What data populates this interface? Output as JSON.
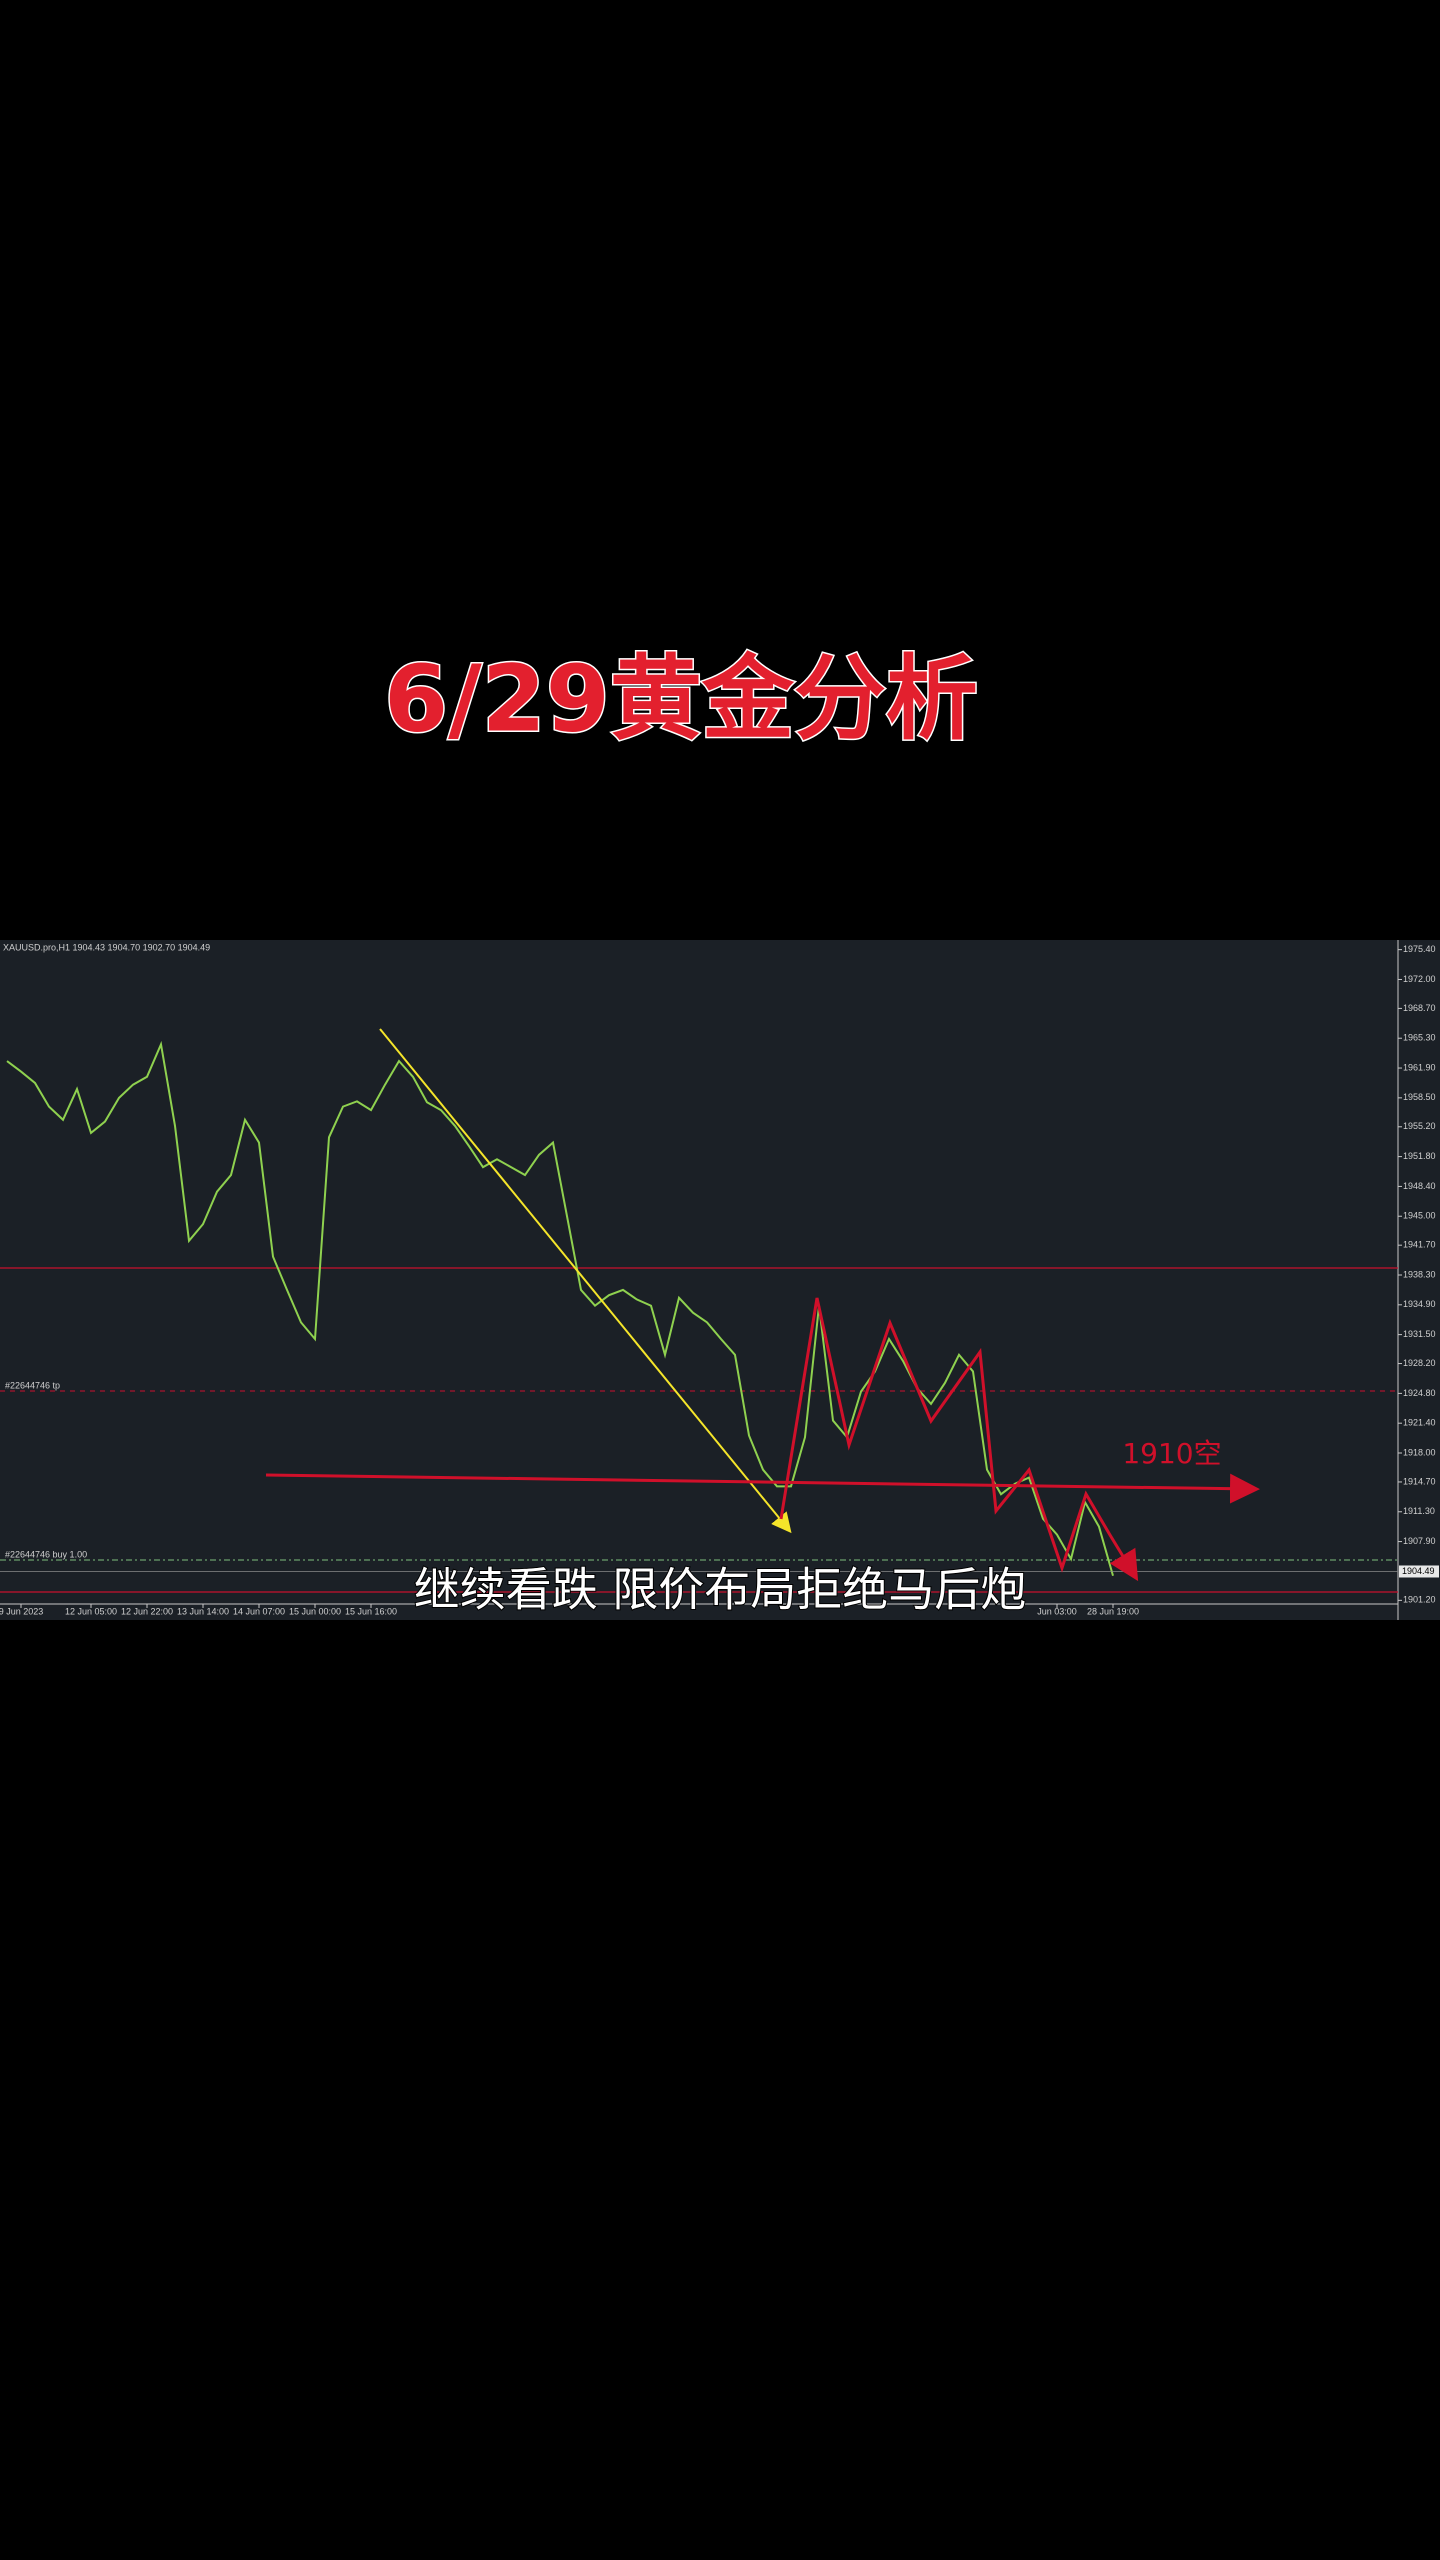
{
  "video_title": "6/29黄金分析",
  "subtitle": "继续看跌 限价布局拒绝马后炮",
  "chart_data": {
    "type": "line",
    "header": "XAUUSD.pro,H1  1904.43 1904.70 1902.70 1904.49",
    "color": "#8fd14f",
    "categories": [
      null,
      "9 Jun 2023",
      null,
      null,
      null,
      null,
      "12 Jun 05:00",
      null,
      null,
      null,
      "12 Jun 22:00",
      null,
      null,
      null,
      "13 Jun 14:00",
      null,
      null,
      null,
      "14 Jun 07:00",
      null,
      null,
      null,
      "15 Jun 00:00",
      null,
      null,
      null,
      "15 Jun 16:00",
      null,
      null,
      null,
      null,
      null,
      null,
      null,
      null,
      null,
      null,
      null,
      null,
      null,
      null,
      null,
      null,
      null,
      null,
      null,
      null,
      null,
      null,
      null,
      null,
      null,
      null,
      null,
      null,
      null,
      null,
      null,
      null,
      null,
      null,
      null,
      null,
      null,
      null,
      null,
      null,
      null,
      null,
      null,
      null,
      null,
      null,
      null,
      null,
      "Jun 03:00",
      null,
      null,
      null,
      "28 Jun 19:00"
    ],
    "values": [
      1962.7,
      1961.5,
      1960.2,
      1957.5,
      1956.0,
      1959.5,
      1954.5,
      1955.8,
      1958.5,
      1960.0,
      1960.9,
      1964.6,
      1955.3,
      1942.2,
      1944.1,
      1947.8,
      1949.7,
      1956.0,
      1953.4,
      1940.4,
      1936.6,
      1932.9,
      1931.0,
      1954.0,
      1957.5,
      1958.1,
      1957.1,
      1960.0,
      1962.7,
      1960.9,
      1958.0,
      1957.1,
      1955.3,
      1953.0,
      1950.6,
      1951.5,
      1950.6,
      1949.7,
      1952.0,
      1953.4,
      1945.0,
      1936.6,
      1934.8,
      1936.0,
      1936.6,
      1935.5,
      1934.8,
      1929.2,
      1935.7,
      1934.0,
      1932.9,
      1931.0,
      1929.2,
      1920.0,
      1916.1,
      1914.2,
      1914.2,
      1919.8,
      1934.8,
      1921.7,
      1919.8,
      1925.0,
      1927.3,
      1931.0,
      1928.5,
      1925.4,
      1923.6,
      1926.0,
      1929.2,
      1927.3,
      1916.1,
      1913.3,
      1914.5,
      1915.2,
      1910.5,
      1908.7,
      1905.9,
      1912.4,
      1909.6,
      1904.0
    ],
    "ylim": [
      1899.3,
      1976.5
    ],
    "yticks": [
      {
        "value": 1975.4,
        "label": "1975.40"
      },
      {
        "value": 1972,
        "label": "1972.00"
      },
      {
        "value": 1968.7,
        "label": "1968.70"
      },
      {
        "value": 1965.3,
        "label": "1965.30"
      },
      {
        "value": 1961.9,
        "label": "1961.90"
      },
      {
        "value": 1958.5,
        "label": "1958.50"
      },
      {
        "value": 1955.2,
        "label": "1955.20"
      },
      {
        "value": 1951.8,
        "label": "1951.80"
      },
      {
        "value": 1948.4,
        "label": "1948.40"
      },
      {
        "value": 1945,
        "label": "1945.00"
      },
      {
        "value": 1941.7,
        "label": "1941.70"
      },
      {
        "value": 1938.3,
        "label": "1938.30"
      },
      {
        "value": 1934.9,
        "label": "1934.90"
      },
      {
        "value": 1931.5,
        "label": "1931.50"
      },
      {
        "value": 1928.2,
        "label": "1928.20"
      },
      {
        "value": 1924.8,
        "label": "1924.80"
      },
      {
        "value": 1921.4,
        "label": "1921.40"
      },
      {
        "value": 1918,
        "label": "1918.00"
      },
      {
        "value": 1914.7,
        "label": "1914.70"
      },
      {
        "value": 1911.3,
        "label": "1911.30"
      },
      {
        "value": 1907.9,
        "label": "1907.90"
      },
      {
        "value": 1901.2,
        "label": "1901.20"
      }
    ],
    "last_price": 1904.49,
    "tp_label": "#22644746 tp",
    "buy_label": "#22644746 buy 1.00",
    "annotation": "1910空"
  }
}
